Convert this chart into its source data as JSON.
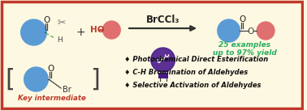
{
  "bg_color": "#fdf8e1",
  "border_color": "#c0392b",
  "border_linewidth": 2.5,
  "aldehyde_circle_color": "#5b9bd5",
  "alcohol_circle_color": "#e07070",
  "product_circle1_color": "#5b9bd5",
  "product_circle2_color": "#e07070",
  "arrow_color": "#333333",
  "arrow_label": "BrCCl₃",
  "arrow_label_fontsize": 8.5,
  "green_text1": "25 examples",
  "green_text2": "up to 97% yield",
  "green_color": "#27ae60",
  "green_fontsize": 6.5,
  "bullet_items": [
    "♦ Photochemical Direct Esterification",
    "♦ C-H Bromination of Aldehydes",
    "♦ Selective Activation of Aldehydes"
  ],
  "bullet_color": "#111111",
  "bullet_fontsize": 6.0,
  "key_text": "Key intermediate",
  "key_color": "#c0392b",
  "key_fontsize": 6.2,
  "lamp_color": "#4a1a8c",
  "lamp_ring_color": "#5b2d8e"
}
